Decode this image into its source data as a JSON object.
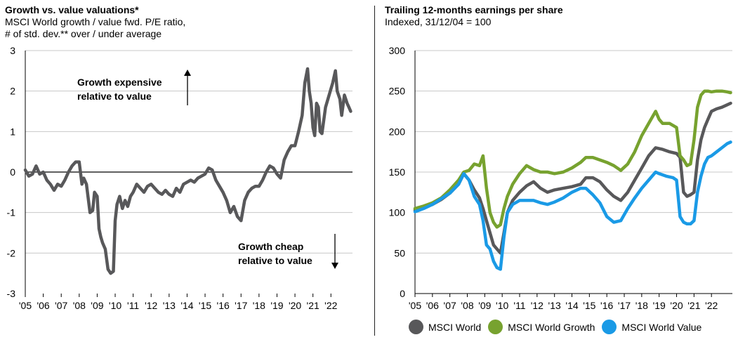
{
  "left": {
    "title": "Growth vs. value valuations*",
    "subtitle1": "MSCI World growth / value fwd. P/E ratio,",
    "subtitle2": "# of std. dev.** over / under average",
    "annot_up1": "Growth expensive",
    "annot_up2": "relative to value",
    "annot_down1": "Growth cheap",
    "annot_down2": "relative to value"
  },
  "right": {
    "title": "Trailing 12-months earnings per share",
    "subtitle": "Indexed, 31/12/04 = 100"
  },
  "colors": {
    "world": "#58585a",
    "growth": "#77a22f",
    "value": "#1a9ae6",
    "grid": "#c8c8c8"
  },
  "chart_data": [
    {
      "type": "line",
      "title": "Growth vs. value valuations*",
      "x_ticks": [
        "'05",
        "'06",
        "'07",
        "'08",
        "'09",
        "'10",
        "'11",
        "'12",
        "'13",
        "'14",
        "'15",
        "'16",
        "'17",
        "'18",
        "'19",
        "'20",
        "'21",
        "'22"
      ],
      "ylim": [
        -3,
        3
      ],
      "y_ticks": [
        "3",
        "2",
        "1",
        "0",
        "-1",
        "-2",
        "-3"
      ],
      "grid": true,
      "series": [
        {
          "color": "#58585a",
          "x": [
            2005.0,
            2005.2,
            2005.4,
            2005.6,
            2005.8,
            2006.0,
            2006.2,
            2006.4,
            2006.6,
            2006.8,
            2007.0,
            2007.2,
            2007.4,
            2007.6,
            2007.8,
            2008.0,
            2008.15,
            2008.25,
            2008.4,
            2008.6,
            2008.75,
            2008.85,
            2009.0,
            2009.1,
            2009.2,
            2009.3,
            2009.45,
            2009.6,
            2009.75,
            2009.9,
            2010.0,
            2010.1,
            2010.25,
            2010.4,
            2010.55,
            2010.7,
            2010.85,
            2011.0,
            2011.2,
            2011.4,
            2011.6,
            2011.8,
            2012.0,
            2012.2,
            2012.4,
            2012.6,
            2012.8,
            2013.0,
            2013.2,
            2013.4,
            2013.6,
            2013.8,
            2014.0,
            2014.2,
            2014.4,
            2014.6,
            2014.8,
            2015.0,
            2015.2,
            2015.4,
            2015.6,
            2015.8,
            2016.0,
            2016.2,
            2016.4,
            2016.6,
            2016.8,
            2017.0,
            2017.2,
            2017.4,
            2017.6,
            2017.8,
            2018.0,
            2018.2,
            2018.4,
            2018.6,
            2018.8,
            2019.0,
            2019.2,
            2019.4,
            2019.6,
            2019.8,
            2020.0,
            2020.2,
            2020.4,
            2020.55,
            2020.7,
            2020.8,
            2020.9,
            2021.0,
            2021.1,
            2021.2,
            2021.3,
            2021.4,
            2021.5,
            2021.7,
            2021.9,
            2022.1,
            2022.25,
            2022.35,
            2022.5,
            2022.6,
            2022.75,
            2022.9,
            2023.0,
            2023.1
          ],
          "y": [
            0.05,
            -0.1,
            -0.05,
            0.15,
            -0.05,
            0.0,
            -0.2,
            -0.3,
            -0.45,
            -0.3,
            -0.35,
            -0.2,
            0.0,
            0.15,
            0.25,
            0.25,
            -0.3,
            -0.15,
            -0.3,
            -1.0,
            -0.95,
            -0.5,
            -0.6,
            -1.4,
            -1.6,
            -1.75,
            -1.9,
            -2.4,
            -2.5,
            -2.45,
            -1.2,
            -0.8,
            -0.6,
            -0.9,
            -0.7,
            -0.85,
            -0.6,
            -0.5,
            -0.3,
            -0.4,
            -0.5,
            -0.35,
            -0.3,
            -0.4,
            -0.5,
            -0.55,
            -0.45,
            -0.55,
            -0.6,
            -0.4,
            -0.5,
            -0.3,
            -0.25,
            -0.2,
            -0.25,
            -0.15,
            -0.1,
            -0.05,
            0.1,
            0.05,
            -0.2,
            -0.35,
            -0.5,
            -0.7,
            -1.0,
            -0.85,
            -1.1,
            -1.2,
            -0.7,
            -0.5,
            -0.4,
            -0.35,
            -0.35,
            -0.2,
            0.0,
            0.15,
            0.1,
            -0.05,
            -0.15,
            0.3,
            0.5,
            0.65,
            0.65,
            1.0,
            1.4,
            2.2,
            2.55,
            2.0,
            1.7,
            1.1,
            0.9,
            1.7,
            1.6,
            1.0,
            0.95,
            1.6,
            1.9,
            2.2,
            2.5,
            2.0,
            1.8,
            1.4,
            1.9,
            1.7,
            1.6,
            1.5
          ]
        }
      ]
    },
    {
      "type": "line",
      "title": "Trailing 12-months earnings per share",
      "x_ticks": [
        "'05",
        "'06",
        "'07",
        "'08",
        "'09",
        "'10",
        "'11",
        "'12",
        "'13",
        "'14",
        "'15",
        "'16",
        "'17",
        "'18",
        "'19",
        "'20",
        "'21",
        "'22"
      ],
      "ylim": [
        0,
        300
      ],
      "y_ticks": [
        "300",
        "250",
        "200",
        "150",
        "100",
        "50",
        "0"
      ],
      "grid": true,
      "legend_position": "bottom",
      "series": [
        {
          "name": "MSCI World",
          "color": "#58585a",
          "x": [
            2005.0,
            2005.5,
            2006.0,
            2006.5,
            2007.0,
            2007.5,
            2007.8,
            2008.1,
            2008.4,
            2008.7,
            2008.9,
            2009.1,
            2009.3,
            2009.5,
            2009.7,
            2009.9,
            2010.1,
            2010.3,
            2010.6,
            2011.0,
            2011.4,
            2011.8,
            2012.2,
            2012.6,
            2013.0,
            2013.5,
            2014.0,
            2014.5,
            2014.8,
            2015.2,
            2015.6,
            2016.0,
            2016.4,
            2016.8,
            2017.2,
            2017.6,
            2018.0,
            2018.4,
            2018.8,
            2019.2,
            2019.6,
            2020.0,
            2020.2,
            2020.4,
            2020.6,
            2020.8,
            2021.0,
            2021.2,
            2021.4,
            2021.6,
            2021.8,
            2022.0,
            2022.3,
            2022.6,
            2022.9,
            2023.1
          ],
          "y": [
            103,
            106,
            110,
            116,
            124,
            135,
            148,
            140,
            128,
            118,
            105,
            90,
            75,
            60,
            55,
            50,
            75,
            100,
            115,
            125,
            133,
            138,
            130,
            125,
            128,
            130,
            132,
            135,
            143,
            143,
            138,
            128,
            120,
            115,
            125,
            140,
            155,
            170,
            180,
            178,
            175,
            173,
            168,
            125,
            120,
            122,
            125,
            165,
            190,
            205,
            215,
            225,
            228,
            230,
            233,
            235
          ]
        },
        {
          "name": "MSCI World Growth",
          "color": "#77a22f",
          "x": [
            2005.0,
            2005.5,
            2006.0,
            2006.5,
            2007.0,
            2007.5,
            2007.8,
            2008.1,
            2008.4,
            2008.7,
            2008.9,
            2009.1,
            2009.3,
            2009.5,
            2009.7,
            2009.9,
            2010.1,
            2010.3,
            2010.6,
            2011.0,
            2011.4,
            2011.8,
            2012.2,
            2012.6,
            2013.0,
            2013.5,
            2014.0,
            2014.5,
            2014.8,
            2015.2,
            2015.6,
            2016.0,
            2016.4,
            2016.8,
            2017.2,
            2017.6,
            2018.0,
            2018.4,
            2018.8,
            2019.0,
            2019.2,
            2019.6,
            2020.0,
            2020.2,
            2020.4,
            2020.6,
            2020.8,
            2021.0,
            2021.2,
            2021.4,
            2021.6,
            2021.8,
            2022.0,
            2022.3,
            2022.6,
            2022.9,
            2023.1
          ],
          "y": [
            105,
            108,
            112,
            118,
            128,
            140,
            150,
            152,
            160,
            158,
            170,
            130,
            100,
            88,
            82,
            85,
            105,
            120,
            135,
            148,
            158,
            153,
            150,
            150,
            148,
            150,
            155,
            162,
            168,
            168,
            165,
            162,
            158,
            152,
            160,
            175,
            195,
            210,
            225,
            215,
            210,
            210,
            205,
            170,
            165,
            158,
            160,
            190,
            230,
            245,
            250,
            250,
            249,
            250,
            250,
            249,
            248
          ]
        },
        {
          "name": "MSCI World Value",
          "color": "#1a9ae6",
          "x": [
            2005.0,
            2005.5,
            2006.0,
            2006.5,
            2007.0,
            2007.5,
            2007.8,
            2008.1,
            2008.4,
            2008.7,
            2008.9,
            2009.1,
            2009.3,
            2009.5,
            2009.7,
            2009.9,
            2010.1,
            2010.3,
            2010.6,
            2011.0,
            2011.4,
            2011.8,
            2012.2,
            2012.6,
            2013.0,
            2013.5,
            2014.0,
            2014.5,
            2014.8,
            2015.2,
            2015.6,
            2016.0,
            2016.4,
            2016.8,
            2017.2,
            2017.6,
            2018.0,
            2018.4,
            2018.8,
            2019.0,
            2019.4,
            2019.8,
            2020.0,
            2020.2,
            2020.4,
            2020.6,
            2020.8,
            2021.0,
            2021.2,
            2021.4,
            2021.6,
            2021.8,
            2022.0,
            2022.3,
            2022.6,
            2022.9,
            2023.1
          ],
          "y": [
            101,
            105,
            110,
            117,
            124,
            135,
            148,
            140,
            120,
            110,
            90,
            60,
            55,
            40,
            32,
            30,
            70,
            100,
            110,
            115,
            115,
            115,
            112,
            110,
            113,
            118,
            125,
            130,
            130,
            122,
            112,
            95,
            88,
            90,
            105,
            118,
            130,
            140,
            150,
            148,
            145,
            143,
            140,
            95,
            88,
            86,
            86,
            90,
            125,
            145,
            160,
            168,
            170,
            175,
            180,
            185,
            187
          ]
        }
      ]
    }
  ]
}
